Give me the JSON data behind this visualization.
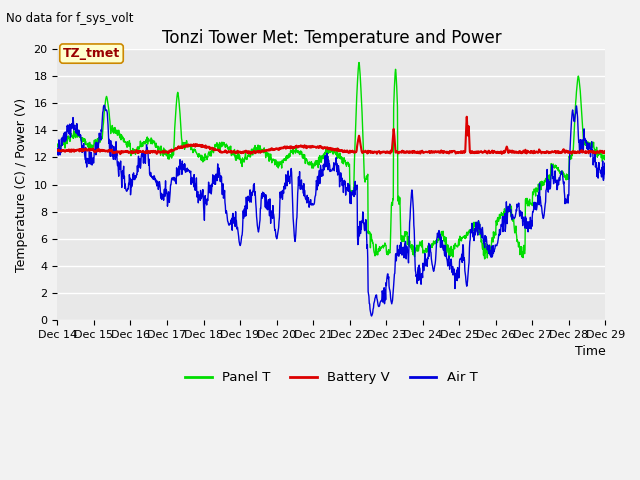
{
  "title": "Tonzi Tower Met: Temperature and Power",
  "xlabel": "Time",
  "ylabel": "Temperature (C) / Power (V)",
  "no_data_label": "No data for f_sys_volt",
  "tz_label": "TZ_tmet",
  "xlim": [
    0,
    15
  ],
  "ylim": [
    0,
    20
  ],
  "yticks": [
    0,
    2,
    4,
    6,
    8,
    10,
    12,
    14,
    16,
    18,
    20
  ],
  "xtick_labels": [
    "Dec 14",
    "Dec 15",
    "Dec 16",
    "Dec 17",
    "Dec 18",
    "Dec 19",
    "Dec 20",
    "Dec 21",
    "Dec 22",
    "Dec 23",
    "Dec 24",
    "Dec 25",
    "Dec 26",
    "Dec 27",
    "Dec 28",
    "Dec 29"
  ],
  "bg_color": "#e8e8e8",
  "panel_t_color": "#00dd00",
  "battery_v_color": "#dd0000",
  "air_t_color": "#0000dd",
  "legend_labels": [
    "Panel T",
    "Battery V",
    "Air T"
  ],
  "title_fontsize": 12,
  "axis_fontsize": 9,
  "tick_fontsize": 8,
  "fig_bg": "#f2f2f2"
}
